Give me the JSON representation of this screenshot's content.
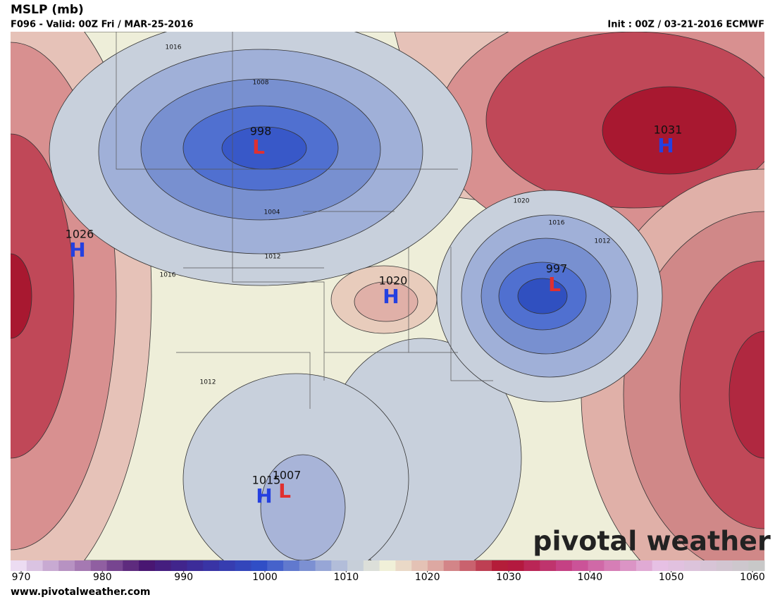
{
  "header": {
    "title": "MSLP (mb)",
    "valid": "F096 - Valid: 00Z Fri / MAR-25-2016",
    "init": "Init : 00Z / 03-21-2016 ECMWF"
  },
  "map": {
    "centers": [
      {
        "value": "998",
        "symbol": "L"
      },
      {
        "value": "1031",
        "symbol": "H"
      },
      {
        "value": "1026",
        "symbol": "H"
      },
      {
        "value": "1020",
        "symbol": "H"
      },
      {
        "value": "997",
        "symbol": "L"
      },
      {
        "value": "1015",
        "symbol": "H"
      },
      {
        "value": "1007",
        "symbol": "L"
      }
    ],
    "contour_labels": [
      "1016",
      "1008",
      "1004",
      "1012",
      "1016",
      "1012",
      "1020",
      "1016",
      "1012"
    ],
    "watermark": "pivotal weather"
  },
  "colorbar": {
    "ticks": [
      970,
      980,
      990,
      1000,
      1010,
      1020,
      1030,
      1040,
      1050,
      1060
    ]
  },
  "footer": {
    "url": "www.pivotalweather.com"
  }
}
